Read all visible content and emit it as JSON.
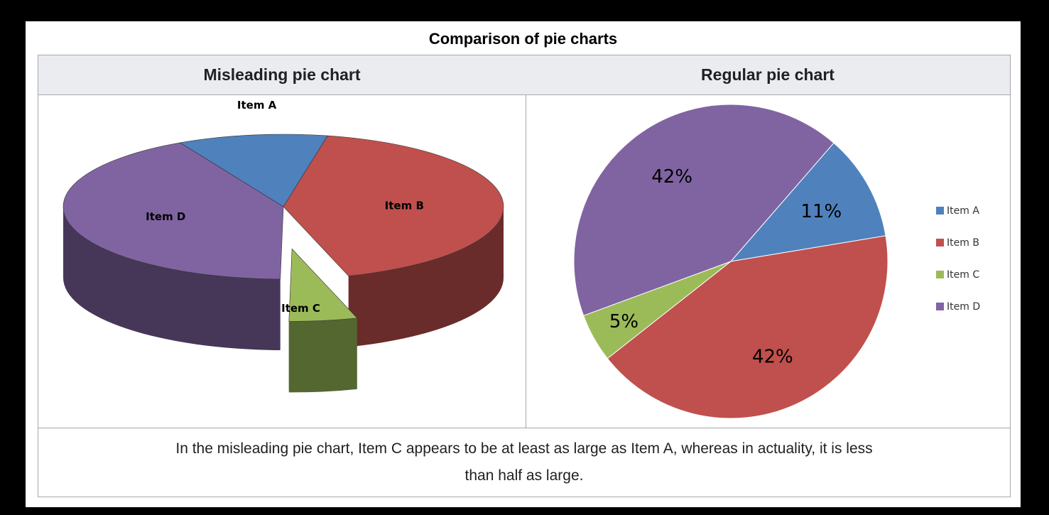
{
  "table_title": "Comparison of pie charts",
  "headers": {
    "left": "Misleading pie chart",
    "right": "Regular pie chart"
  },
  "caption": "In the misleading pie chart, Item C appears to be at least as large as Item A, whereas in actuality, it is less than half as large.",
  "colors": {
    "Item A": "#4f81bd",
    "Item B": "#c0504d",
    "Item C": "#9bbb59",
    "Item D": "#8064a2"
  },
  "chart_data": [
    {
      "type": "pie",
      "style": "3d-perspective",
      "labels": [
        "Item A",
        "Item B",
        "Item C",
        "Item D"
      ],
      "values": [
        11,
        42,
        5,
        42
      ],
      "exploded": [
        "Item C"
      ],
      "legend": "none",
      "data_labels": "category-names"
    },
    {
      "type": "pie",
      "style": "2d",
      "labels": [
        "Item A",
        "Item B",
        "Item C",
        "Item D"
      ],
      "values": [
        11,
        42,
        5,
        42
      ],
      "data_labels": [
        "11%",
        "42%",
        "5%",
        "42%"
      ],
      "legend": "right",
      "legend_entries": [
        "Item A",
        "Item B",
        "Item C",
        "Item D"
      ]
    }
  ]
}
